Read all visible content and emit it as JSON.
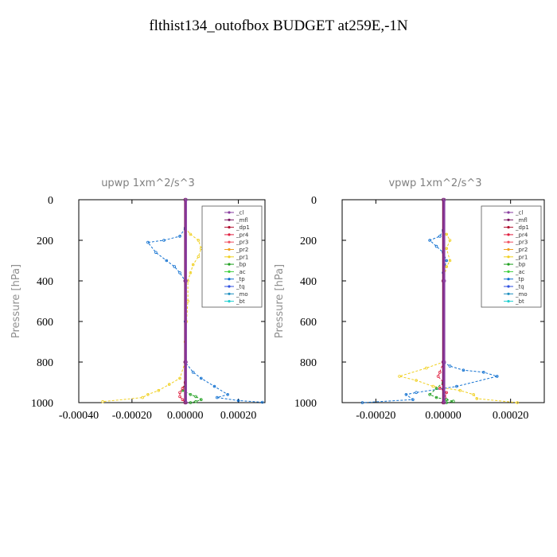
{
  "title": "flthist134_outofbox  BUDGET at259E,-1N",
  "legend_labels": [
    "_cl",
    "_mfl",
    "_dp1",
    "_pr4",
    "_pr3",
    "_pr2",
    "_pr1",
    "_bp",
    "_ac",
    "_tp",
    "_tq",
    "_mo",
    "_bt"
  ],
  "colors": {
    "_cl": "#8a3ea0",
    "_mfl": "#7a1460",
    "_dp1": "#b01030",
    "_pr4": "#e02040",
    "_pr3": "#f05060",
    "_pr2": "#f0a020",
    "_pr1": "#f0d020",
    "_bp": "#20a020",
    "_ac": "#40d040",
    "_tp": "#1070d0",
    "_tq": "#3050e0",
    "_mo": "#2090c0",
    "_bt": "#20d0d0"
  },
  "chart_data": [
    {
      "type": "line",
      "title": "upwp   1xm^2/s^3",
      "ylabel": "Pressure [hPa]",
      "xlim": [
        -0.0004,
        0.0003
      ],
      "ylim": [
        1000,
        0
      ],
      "xticks": [
        "-0.00040",
        "-0.00020",
        "0.00000",
        "0.00020"
      ],
      "xtick_values": [
        -0.0004,
        -0.0002,
        0.0,
        0.0002
      ],
      "yticks": [
        "0",
        "200",
        "400",
        "600",
        "800",
        "1000"
      ],
      "ytick_values": [
        0,
        200,
        400,
        600,
        800,
        1000
      ],
      "legend_position": "top-right",
      "series": [
        {
          "name": "_pr1",
          "x": [
            0,
            2e-05,
            5e-05,
            6e-05,
            5e-05,
            3e-05,
            2e-05,
            1e-05,
            1e-05,
            5e-06,
            0,
            0,
            -2e-05,
            -6e-05,
            -0.0001,
            -0.00014,
            -0.00016,
            -0.00031
          ],
          "y": [
            140,
            170,
            200,
            240,
            280,
            320,
            360,
            400,
            500,
            600,
            700,
            800,
            880,
            910,
            940,
            960,
            975,
            995
          ]
        },
        {
          "name": "_tp",
          "x": [
            0,
            -2e-05,
            -8e-05,
            -0.00014,
            -0.00011,
            -7e-05,
            -4e-05,
            -2e-05,
            0,
            0,
            0,
            3e-05,
            6e-05,
            0.00011,
            0.00016,
            0.00012,
            0.0002,
            0.00029
          ],
          "y": [
            140,
            180,
            200,
            210,
            260,
            300,
            330,
            360,
            400,
            600,
            800,
            850,
            880,
            920,
            960,
            975,
            990,
            998
          ]
        },
        {
          "name": "_bp",
          "x": [
            0,
            0,
            -1e-05,
            2e-05,
            4e-05,
            6e-05,
            4e-05,
            2e-05
          ],
          "y": [
            800,
            900,
            940,
            960,
            970,
            985,
            995,
            1000
          ]
        },
        {
          "name": "_pr4",
          "x": [
            0,
            -1e-05,
            -2e-05,
            -2e-05,
            -1e-05,
            0
          ],
          "y": [
            900,
            930,
            950,
            970,
            985,
            1000
          ]
        },
        {
          "name": "_mfl",
          "x": [
            0,
            0,
            0,
            0
          ],
          "y": [
            0,
            400,
            800,
            1000
          ]
        },
        {
          "name": "_cl",
          "x": [
            3e-06,
            3e-06,
            3e-06,
            3e-06
          ],
          "y": [
            0,
            400,
            800,
            1000
          ]
        }
      ]
    },
    {
      "type": "line",
      "title": "vpwp   1xm^2/s^3",
      "ylabel": "Pressure [hPa]",
      "xlim": [
        -0.0003,
        0.0003
      ],
      "ylim": [
        1000,
        0
      ],
      "xticks": [
        "-0.00020",
        "0.00000",
        "0.00020"
      ],
      "xtick_values": [
        -0.0002,
        0.0,
        0.0002
      ],
      "yticks": [
        "0",
        "200",
        "400",
        "600",
        "800",
        "1000"
      ],
      "ytick_values": [
        0,
        200,
        400,
        600,
        800,
        1000
      ],
      "legend_position": "top-right",
      "series": [
        {
          "name": "_pr1",
          "x": [
            0,
            1e-05,
            2e-05,
            1e-05,
            2e-05,
            1e-05,
            0,
            0,
            -5e-05,
            -0.00013,
            -8e-05,
            -3e-05,
            5e-05,
            9e-05,
            0.0001,
            0.00022
          ],
          "y": [
            150,
            170,
            200,
            240,
            300,
            330,
            400,
            800,
            830,
            870,
            890,
            920,
            940,
            960,
            980,
            1000
          ]
        },
        {
          "name": "_tp",
          "x": [
            0,
            -1e-05,
            -4e-05,
            -2e-05,
            0,
            1e-05,
            0,
            0,
            2e-05,
            6e-05,
            0.00012,
            0.00016,
            4e-05,
            -8e-05,
            -0.00011,
            -9e-05,
            -0.00024
          ],
          "y": [
            150,
            180,
            200,
            230,
            260,
            300,
            360,
            800,
            820,
            840,
            850,
            870,
            920,
            950,
            960,
            985,
            1000
          ]
        },
        {
          "name": "_pr4",
          "x": [
            0,
            -1e-05,
            -1.5e-05,
            0,
            -1e-05,
            1e-05,
            5e-06,
            0
          ],
          "y": [
            800,
            850,
            870,
            900,
            930,
            950,
            975,
            1000
          ]
        },
        {
          "name": "_bp",
          "x": [
            0,
            -2e-05,
            -4e-05,
            -2e-05,
            1e-05,
            3e-05,
            1e-05
          ],
          "y": [
            900,
            930,
            960,
            975,
            985,
            993,
            1000
          ]
        },
        {
          "name": "_mfl",
          "x": [
            0,
            0,
            0,
            0
          ],
          "y": [
            0,
            400,
            800,
            1000
          ]
        },
        {
          "name": "_cl",
          "x": [
            3e-06,
            3e-06,
            3e-06,
            3e-06
          ],
          "y": [
            0,
            400,
            800,
            1000
          ]
        }
      ]
    }
  ]
}
